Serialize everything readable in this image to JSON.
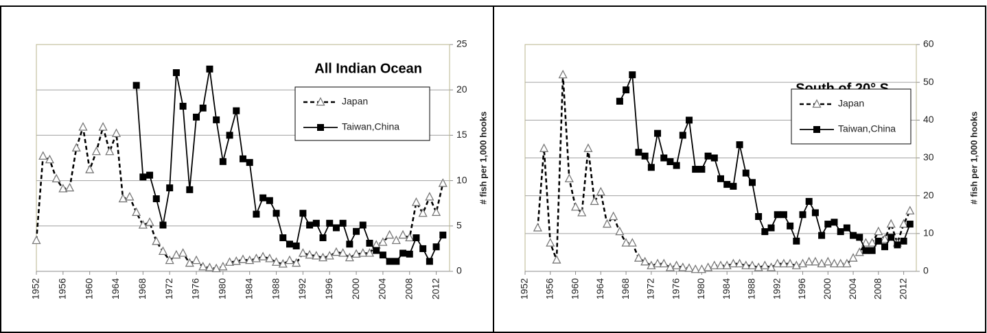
{
  "chart_data": [
    {
      "type": "line",
      "title": "All Indian Ocean",
      "y_label": "# fish per 1,000 hooks",
      "x": [
        1952,
        1953,
        1954,
        1955,
        1956,
        1957,
        1958,
        1959,
        1960,
        1961,
        1962,
        1963,
        1964,
        1965,
        1966,
        1967,
        1968,
        1969,
        1970,
        1971,
        1972,
        1973,
        1974,
        1975,
        1976,
        1977,
        1978,
        1979,
        1980,
        1981,
        1982,
        1983,
        1984,
        1985,
        1986,
        1987,
        1988,
        1989,
        1990,
        1991,
        1992,
        1993,
        1994,
        1995,
        1996,
        1997,
        1998,
        1999,
        2000,
        2001,
        2002,
        2003,
        2004,
        2005,
        2006,
        2007,
        2008,
        2009,
        2010,
        2011,
        2012,
        2013
      ],
      "series": [
        {
          "name": "Japan",
          "color": "#000000",
          "marker": "triangle",
          "dash": true,
          "values": [
            3.4,
            12.7,
            12.3,
            10.2,
            9.1,
            9.2,
            13.6,
            15.9,
            11.2,
            13.2,
            15.9,
            13.2,
            15.2,
            8.0,
            8.2,
            6.5,
            5.1,
            5.4,
            3.3,
            2.2,
            1.2,
            1.8,
            2.0,
            0.9,
            1.2,
            0.5,
            0.4,
            0.3,
            0.5,
            1.0,
            1.1,
            1.3,
            1.2,
            1.4,
            1.6,
            1.4,
            1.0,
            0.8,
            1.2,
            0.9,
            2.0,
            1.8,
            1.7,
            1.5,
            1.7,
            2.1,
            2.0,
            1.5,
            1.9,
            2.0,
            2.0,
            2.9,
            3.2,
            4.0,
            3.4,
            4.0,
            3.7,
            7.6,
            6.4,
            8.2,
            6.5,
            9.7
          ]
        },
        {
          "name": "Taiwan,China",
          "color": "#000000",
          "marker": "square",
          "dash": false,
          "values": [
            null,
            null,
            null,
            null,
            null,
            null,
            null,
            null,
            null,
            null,
            null,
            null,
            null,
            null,
            null,
            20.5,
            10.4,
            10.6,
            8.0,
            5.1,
            9.2,
            21.9,
            18.2,
            9.0,
            17.0,
            18.0,
            22.3,
            16.7,
            12.1,
            15.0,
            17.7,
            12.4,
            12.0,
            6.3,
            8.1,
            7.8,
            6.4,
            3.7,
            3.0,
            2.8,
            6.4,
            5.1,
            5.3,
            3.7,
            5.3,
            4.8,
            5.3,
            3.0,
            4.4,
            5.1,
            3.1,
            2.3,
            1.8,
            1.1,
            1.1,
            2.0,
            1.9,
            3.7,
            2.5,
            1.1,
            2.7,
            4.0
          ]
        }
      ],
      "xlim": [
        1952,
        2014
      ],
      "ylim": [
        0,
        25
      ],
      "xticks": [
        1952,
        1956,
        1960,
        1964,
        1968,
        1972,
        1976,
        1980,
        1984,
        1988,
        1992,
        1996,
        2000,
        2004,
        2008,
        2012
      ],
      "yticks": [
        0,
        5,
        10,
        15,
        20,
        25
      ],
      "grid": true
    },
    {
      "type": "line",
      "title": "South of 20° S",
      "y_label": "# fish per 1,000 hooks",
      "x": [
        1952,
        1953,
        1954,
        1955,
        1956,
        1957,
        1958,
        1959,
        1960,
        1961,
        1962,
        1963,
        1964,
        1965,
        1966,
        1967,
        1968,
        1969,
        1970,
        1971,
        1972,
        1973,
        1974,
        1975,
        1976,
        1977,
        1978,
        1979,
        1980,
        1981,
        1982,
        1983,
        1984,
        1985,
        1986,
        1987,
        1988,
        1989,
        1990,
        1991,
        1992,
        1993,
        1994,
        1995,
        1996,
        1997,
        1998,
        1999,
        2000,
        2001,
        2002,
        2003,
        2004,
        2005,
        2006,
        2007,
        2008,
        2009,
        2010,
        2011,
        2012,
        2013
      ],
      "series": [
        {
          "name": "Japan",
          "color": "#000000",
          "marker": "triangle",
          "dash": true,
          "values": [
            null,
            null,
            11.5,
            32.5,
            7.5,
            3,
            52,
            24.5,
            17,
            15.5,
            32.5,
            18.5,
            21,
            12.5,
            14.5,
            10.5,
            7.5,
            7.5,
            3.5,
            2.5,
            1.5,
            2,
            2,
            1,
            1.5,
            1,
            0.8,
            0.5,
            0.5,
            1,
            1.5,
            1.5,
            1.5,
            2,
            2,
            1.5,
            1.5,
            1,
            1.5,
            1,
            2,
            2,
            2,
            1.5,
            2,
            2.5,
            2.5,
            2,
            2.5,
            2,
            2,
            2,
            3.5,
            5,
            7.5,
            7.5,
            10.5,
            8.5,
            12.5,
            7.5,
            12.5,
            16
          ]
        },
        {
          "name": "Taiwan,China",
          "color": "#000000",
          "marker": "square",
          "dash": false,
          "values": [
            null,
            null,
            null,
            null,
            null,
            null,
            null,
            null,
            null,
            null,
            null,
            null,
            null,
            null,
            null,
            45,
            48,
            52,
            31.5,
            30.5,
            27.5,
            36.5,
            30,
            29,
            28,
            36,
            40,
            27,
            27,
            30.5,
            30,
            24.5,
            23,
            22.5,
            33.5,
            26,
            23.5,
            14.5,
            10.5,
            11.5,
            15,
            15,
            12,
            8,
            15,
            18.5,
            15.5,
            9.5,
            12.5,
            13,
            10.5,
            11.5,
            9.5,
            9,
            5.5,
            5.5,
            8,
            6.5,
            9,
            7,
            8,
            12.5
          ]
        }
      ],
      "xlim": [
        1952,
        2014
      ],
      "ylim": [
        0,
        60
      ],
      "xticks": [
        1952,
        1956,
        1960,
        1964,
        1968,
        1972,
        1976,
        1980,
        1984,
        1988,
        1992,
        1996,
        2000,
        2004,
        2008,
        2012
      ],
      "yticks": [
        0,
        10,
        20,
        30,
        40,
        50,
        60
      ],
      "grid": true
    }
  ]
}
